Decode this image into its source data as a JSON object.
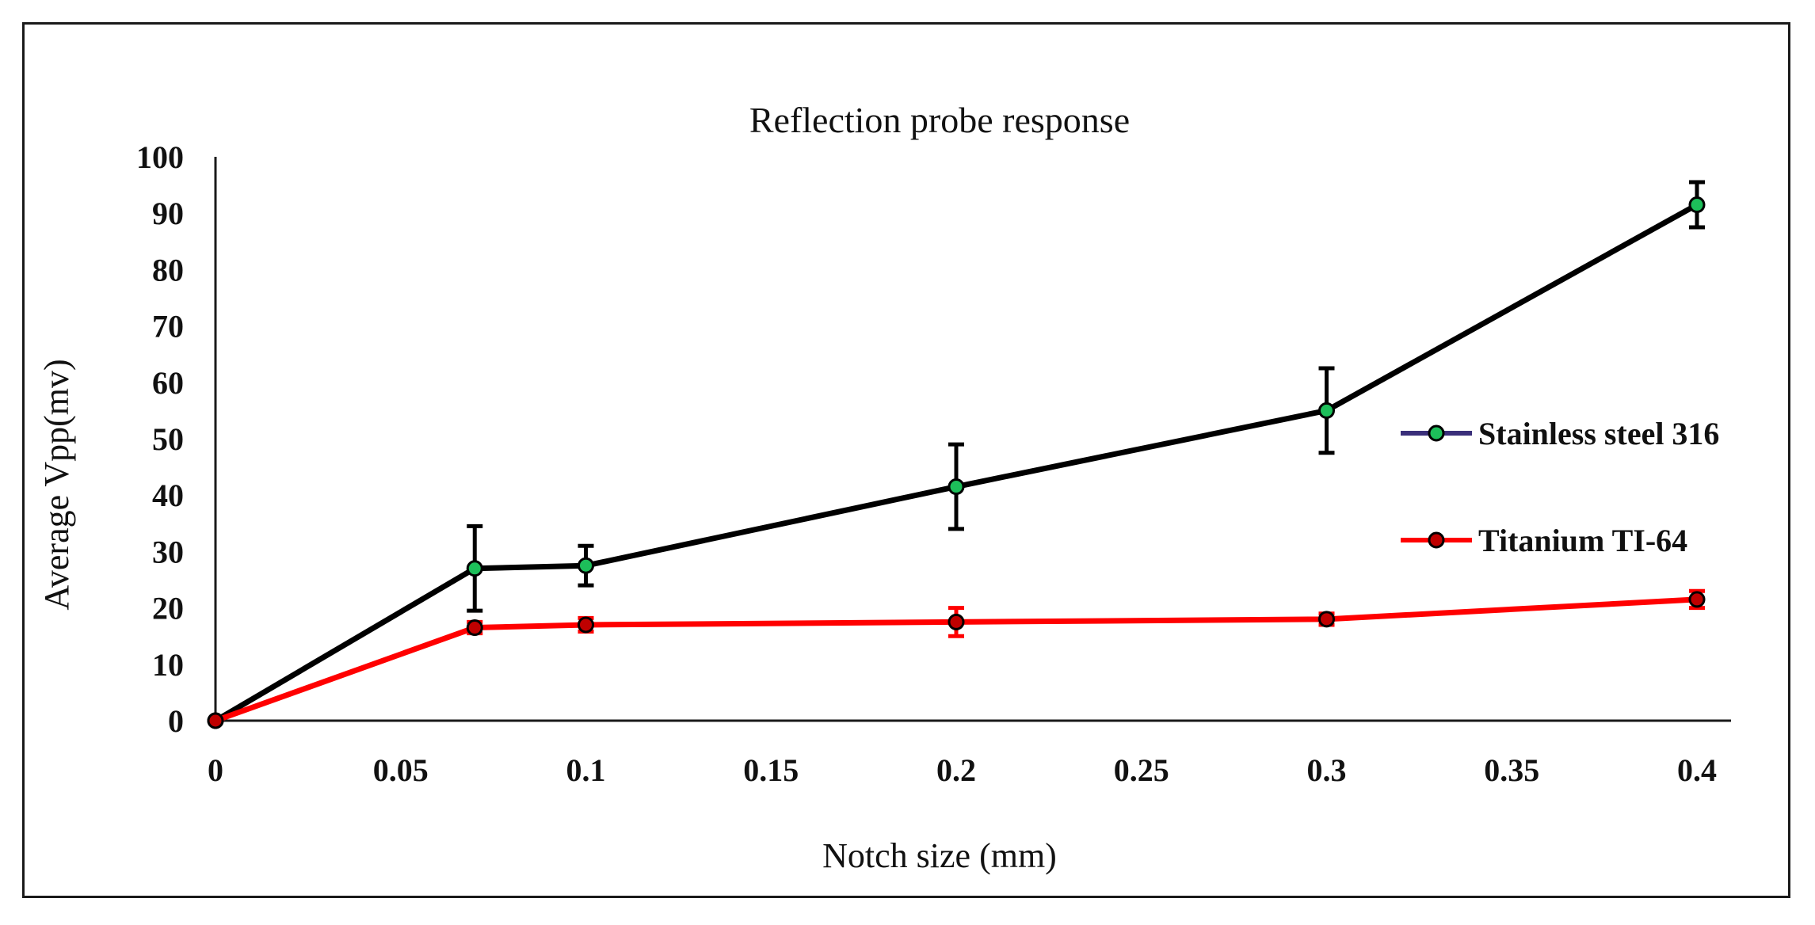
{
  "chart_data": {
    "type": "line",
    "title": "Reflection probe response",
    "xlabel": "Notch size (mm)",
    "ylabel": "Average Vpp(mv)",
    "xlim": [
      0,
      0.4
    ],
    "ylim": [
      0,
      100
    ],
    "x_ticks": [
      "0",
      "0.05",
      "0.1",
      "0.15",
      "0.2",
      "0.25",
      "0.3",
      "0.35",
      "0.4"
    ],
    "y_ticks": [
      "0",
      "10",
      "20",
      "30",
      "40",
      "50",
      "60",
      "70",
      "80",
      "90",
      "100"
    ],
    "legend_position": "right",
    "series": [
      {
        "name": "Stainless steel 316",
        "line_color": "#000000",
        "legend_line_color": "#3a2f7a",
        "marker_color": "#1dbf5a",
        "error_color": "#000000",
        "x": [
          0,
          0.07,
          0.1,
          0.2,
          0.3,
          0.4
        ],
        "values": [
          0,
          27,
          27.5,
          41.5,
          55,
          91.5
        ],
        "errors": [
          0,
          7.5,
          3.5,
          7.5,
          7.5,
          4
        ]
      },
      {
        "name": "Titanium TI-64",
        "line_color": "#ff0000",
        "legend_line_color": "#ff0000",
        "marker_color": "#c00000",
        "error_color": "#ff0000",
        "x": [
          0,
          0.07,
          0.1,
          0.2,
          0.3,
          0.4
        ],
        "values": [
          0,
          16.5,
          17,
          17.5,
          18,
          21.5
        ],
        "errors": [
          0,
          1,
          1.2,
          2.5,
          1,
          1.5
        ]
      }
    ]
  }
}
